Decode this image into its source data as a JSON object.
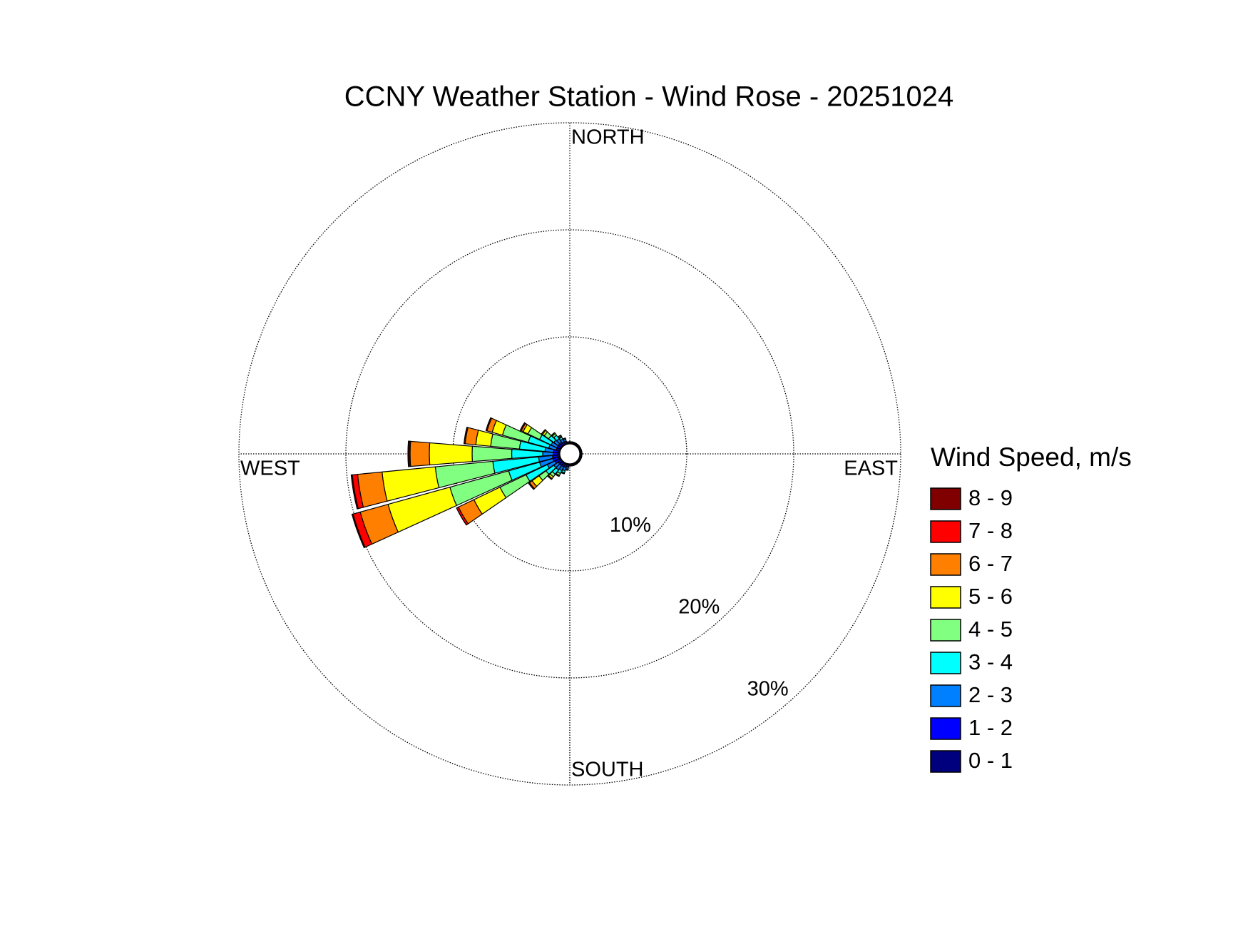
{
  "chart_data": {
    "type": "windrose",
    "title": "CCNY Weather Station - Wind Rose - 20251024",
    "legend_title": "Wind Speed, m/s",
    "direction_labels": [
      "NORTH",
      "EAST",
      "SOUTH",
      "WEST"
    ],
    "x": [
      0,
      10,
      20,
      30,
      40,
      50,
      60,
      70,
      80,
      90,
      100,
      110,
      120,
      130,
      140,
      150,
      160,
      170,
      180,
      190,
      200,
      210,
      220,
      230,
      240,
      250,
      260,
      270,
      280,
      290,
      300,
      310,
      320,
      330,
      340,
      350
    ],
    "rlim": [
      0,
      30
    ],
    "rticks": [
      {
        "value": 10,
        "label": "10%"
      },
      {
        "value": 20,
        "label": "20%"
      },
      {
        "value": 30,
        "label": "30%"
      }
    ],
    "series": [
      {
        "name": "0 - 1",
        "color": "#00007f",
        "values": [
          0.1,
          0.1,
          0.1,
          0.1,
          0.1,
          0.1,
          0.1,
          0.1,
          0.1,
          0.1,
          0.1,
          0.1,
          0.1,
          0.1,
          0.1,
          0.1,
          0.1,
          0.1,
          0.1,
          0.1,
          0.1,
          0.1,
          0.1,
          0.1,
          0.2,
          0.2,
          0.2,
          0.2,
          0.2,
          0.1,
          0.1,
          0.1,
          0.1,
          0.1,
          0.1,
          0.1
        ]
      },
      {
        "name": "1 - 2",
        "color": "#0000ff",
        "values": [
          0.1,
          0.1,
          0.1,
          0.1,
          0.1,
          0.1,
          0.1,
          0.1,
          0.1,
          0.1,
          0.1,
          0.1,
          0.1,
          0.1,
          0.1,
          0.1,
          0.1,
          0.1,
          0.1,
          0.2,
          0.3,
          0.3,
          0.3,
          0.3,
          0.4,
          0.5,
          0.5,
          0.4,
          0.4,
          0.3,
          0.3,
          0.3,
          0.3,
          0.2,
          0.2,
          0.1
        ]
      },
      {
        "name": "2 - 3",
        "color": "#0080ff",
        "values": [
          0,
          0,
          0,
          0,
          0,
          0,
          0,
          0,
          0,
          0,
          0,
          0,
          0,
          0,
          0,
          0,
          0,
          0,
          0,
          0.2,
          0.3,
          0.4,
          0.5,
          0.5,
          0.8,
          1.3,
          1.3,
          1.0,
          0.8,
          0.7,
          0.6,
          0.5,
          0.4,
          0.3,
          0.2,
          0
        ]
      },
      {
        "name": "3 - 4",
        "color": "#00ffff",
        "values": [
          0,
          0,
          0,
          0,
          0,
          0,
          0,
          0,
          0,
          0,
          0,
          0,
          0,
          0,
          0,
          0,
          0,
          0,
          0,
          0.1,
          0.2,
          0.3,
          0.5,
          0.9,
          2.2,
          3.0,
          4.3,
          2.9,
          2.4,
          2.0,
          1.2,
          0.6,
          0.4,
          0.2,
          0.1,
          0
        ]
      },
      {
        "name": "4 - 5",
        "color": "#80ff80",
        "values": [
          0,
          0,
          0,
          0,
          0,
          0,
          0,
          0,
          0,
          0,
          0,
          0,
          0,
          0,
          0,
          0,
          0,
          0,
          0,
          0,
          0.1,
          0.2,
          0.3,
          0.8,
          2.7,
          5.7,
          5.4,
          3.7,
          2.7,
          2.5,
          1.2,
          0.5,
          0.2,
          0.1,
          0,
          0
        ]
      },
      {
        "name": "5 - 6",
        "color": "#ffff00",
        "values": [
          0,
          0,
          0,
          0,
          0,
          0,
          0,
          0,
          0,
          0,
          0,
          0,
          0,
          0,
          0,
          0,
          0,
          0,
          0,
          0,
          0,
          0.1,
          0.2,
          0.8,
          2.7,
          6.0,
          5.0,
          4.0,
          1.4,
          1.0,
          0.5,
          0.2,
          0.1,
          0.1,
          0,
          0
        ]
      },
      {
        "name": "6 - 7",
        "color": "#ff8000",
        "values": [
          0,
          0,
          0,
          0,
          0,
          0,
          0,
          0,
          0,
          0,
          0,
          0,
          0,
          0,
          0,
          0,
          0,
          0,
          0,
          0,
          0,
          0,
          0.1,
          0.3,
          1.6,
          2.7,
          2.3,
          1.8,
          1.0,
          0.5,
          0.2,
          0.1,
          0,
          0,
          0,
          0
        ]
      },
      {
        "name": "7 - 8",
        "color": "#ff0000",
        "values": [
          0,
          0,
          0,
          0,
          0,
          0,
          0,
          0,
          0,
          0,
          0,
          0,
          0,
          0,
          0,
          0,
          0,
          0,
          0,
          0,
          0,
          0,
          0,
          0.1,
          0.2,
          0.7,
          0.5,
          0.1,
          0.1,
          0.1,
          0.1,
          0,
          0,
          0,
          0,
          0
        ]
      },
      {
        "name": "8 - 9",
        "color": "#800000",
        "values": [
          0,
          0,
          0,
          0,
          0,
          0,
          0,
          0,
          0,
          0,
          0,
          0,
          0,
          0,
          0,
          0,
          0,
          0,
          0,
          0,
          0,
          0,
          0,
          0,
          0,
          0.1,
          0.1,
          0.1,
          0,
          0,
          0,
          0,
          0,
          0,
          0,
          0
        ]
      }
    ]
  }
}
